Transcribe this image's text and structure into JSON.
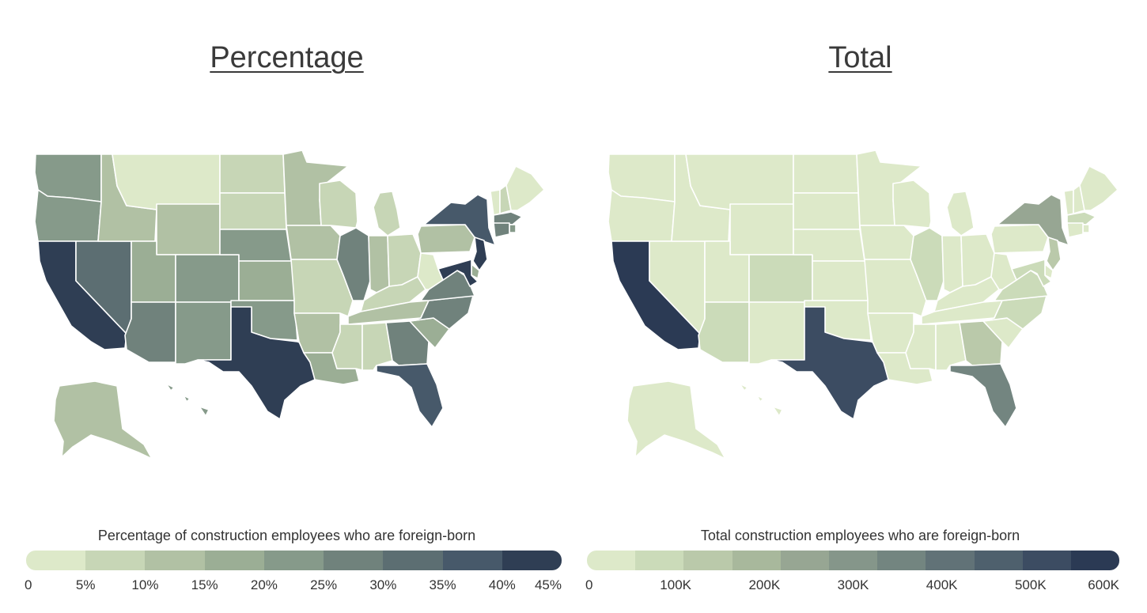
{
  "left_map": {
    "title": "Percentage",
    "legend": {
      "title": "Percentage of construction employees who are foreign-born",
      "ticks": [
        "0",
        "5%",
        "10%",
        "15%",
        "20%",
        "25%",
        "30%",
        "35%",
        "40%",
        "45%"
      ],
      "colors": [
        "#dde9c9",
        "#c7d6b6",
        "#b1c1a4",
        "#9bae95",
        "#869a8a",
        "#70827c",
        "#5c6e72",
        "#47596a",
        "#2f3e54"
      ]
    },
    "states": {
      "WA": 0.22,
      "OR": 0.2,
      "CA": 0.43,
      "NV": 0.34,
      "ID": 0.14,
      "MT": 0.04,
      "WY": 0.1,
      "UT": 0.19,
      "AZ": 0.28,
      "CO": 0.23,
      "NM": 0.24,
      "ND": 0.05,
      "SD": 0.05,
      "NE": 0.2,
      "KS": 0.19,
      "OK": 0.22,
      "TX": 0.42,
      "MN": 0.11,
      "IA": 0.1,
      "MO": 0.08,
      "AR": 0.13,
      "LA": 0.17,
      "WI": 0.07,
      "IL": 0.29,
      "MI": 0.08,
      "IN": 0.12,
      "OH": 0.06,
      "KY": 0.07,
      "TN": 0.12,
      "MS": 0.08,
      "AL": 0.09,
      "GA": 0.27,
      "FL": 0.37,
      "SC": 0.17,
      "NC": 0.25,
      "VA": 0.28,
      "WV": 0.02,
      "PA": 0.1,
      "NY": 0.36,
      "VT": 0.04,
      "NH": 0.06,
      "ME": 0.03,
      "MA": 0.26,
      "CT": 0.26,
      "RI": 0.24,
      "NJ": 0.4,
      "DE": 0.18,
      "MD": 0.41,
      "AK": 0.11,
      "HI": 0.21
    }
  },
  "right_map": {
    "title": "Total",
    "legend": {
      "title": "Total construction employees who are foreign-born",
      "ticks": [
        "0",
        "100K",
        "200K",
        "300K",
        "400K",
        "500K",
        "600K"
      ],
      "colors": [
        "#dde9c9",
        "#cbdbb9",
        "#bac9aa",
        "#a8b89c",
        "#97a693",
        "#85968a",
        "#738580",
        "#617277",
        "#4e606d",
        "#3c4c62",
        "#2b3a54"
      ]
    },
    "states": {
      "WA": 48000,
      "OR": 20000,
      "CA": 560000,
      "NV": 42000,
      "ID": 8000,
      "MT": 2000,
      "WY": 3000,
      "UT": 25000,
      "AZ": 70000,
      "CO": 55000,
      "NM": 14000,
      "ND": 2000,
      "SD": 2000,
      "NE": 10000,
      "KS": 12000,
      "OK": 20000,
      "TX": 520000,
      "MN": 14000,
      "IA": 8000,
      "MO": 11000,
      "AR": 11000,
      "LA": 22000,
      "WI": 10000,
      "IL": 75000,
      "MI": 20000,
      "IN": 20000,
      "OH": 17000,
      "KY": 11000,
      "TN": 30000,
      "MS": 6000,
      "AL": 15000,
      "GA": 110000,
      "FL": 370000,
      "SC": 30000,
      "NC": 95000,
      "VA": 70000,
      "WV": 1000,
      "PA": 40000,
      "NY": 230000,
      "VT": 1000,
      "NH": 3000,
      "ME": 1000,
      "MA": 60000,
      "CT": 25000,
      "RI": 8000,
      "NJ": 120000,
      "DE": 5000,
      "MD": 90000,
      "AK": 3000,
      "HI": 10000
    }
  }
}
